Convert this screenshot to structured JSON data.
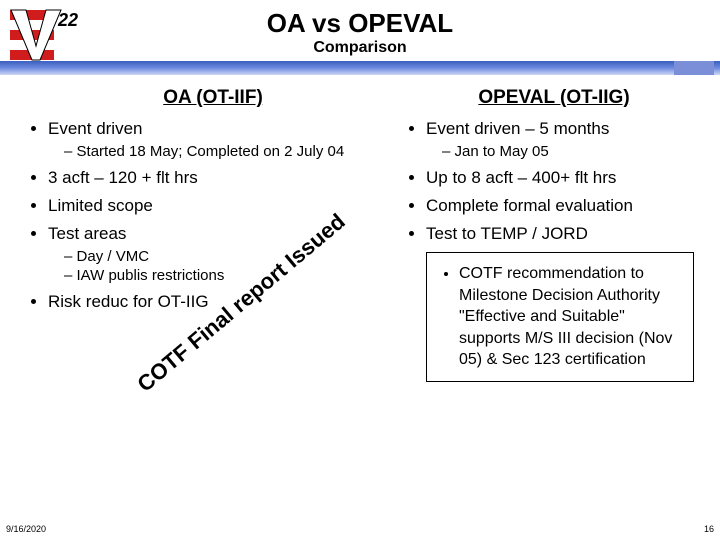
{
  "title": "OA vs OPEVAL",
  "subtitle": "Comparison",
  "left": {
    "header": "OA (OT-IIF)",
    "items": [
      {
        "text": "Event driven",
        "sub": [
          "Started 18 May; Completed on 2 July 04"
        ]
      },
      {
        "text": "3 acft – 120 + flt hrs"
      },
      {
        "text": "Limited scope"
      },
      {
        "text": "Test areas",
        "sub": [
          "Day / VMC",
          "IAW publis        restrictions"
        ]
      },
      {
        "text": "Risk reduc         for OT-IIG"
      }
    ]
  },
  "right": {
    "header": "OPEVAL (OT-IIG)",
    "items": [
      {
        "text": "Event driven – 5 months",
        "sub": [
          "Jan to May 05"
        ]
      },
      {
        "text": "Up to 8 acft – 400+ flt hrs"
      },
      {
        "text": "Complete formal evaluation"
      },
      {
        "text": "Test to TEMP / JORD"
      }
    ]
  },
  "box": {
    "text": "COTF recommendation to Milestone Decision Authority \"Effective and Suitable\" supports M/S III decision (Nov 05) & Sec 123 certification"
  },
  "stamp": "COTF Final report Issued",
  "footer": {
    "date": "9/16/2020",
    "page": "16"
  },
  "logo": {
    "stripes": [
      "#d01c1c",
      "#ffffff",
      "#d01c1c",
      "#ffffff",
      "#d01c1c"
    ],
    "v_color": "#ffffff",
    "v_stroke": "#000000",
    "num": "22",
    "num_color": "#000000"
  }
}
